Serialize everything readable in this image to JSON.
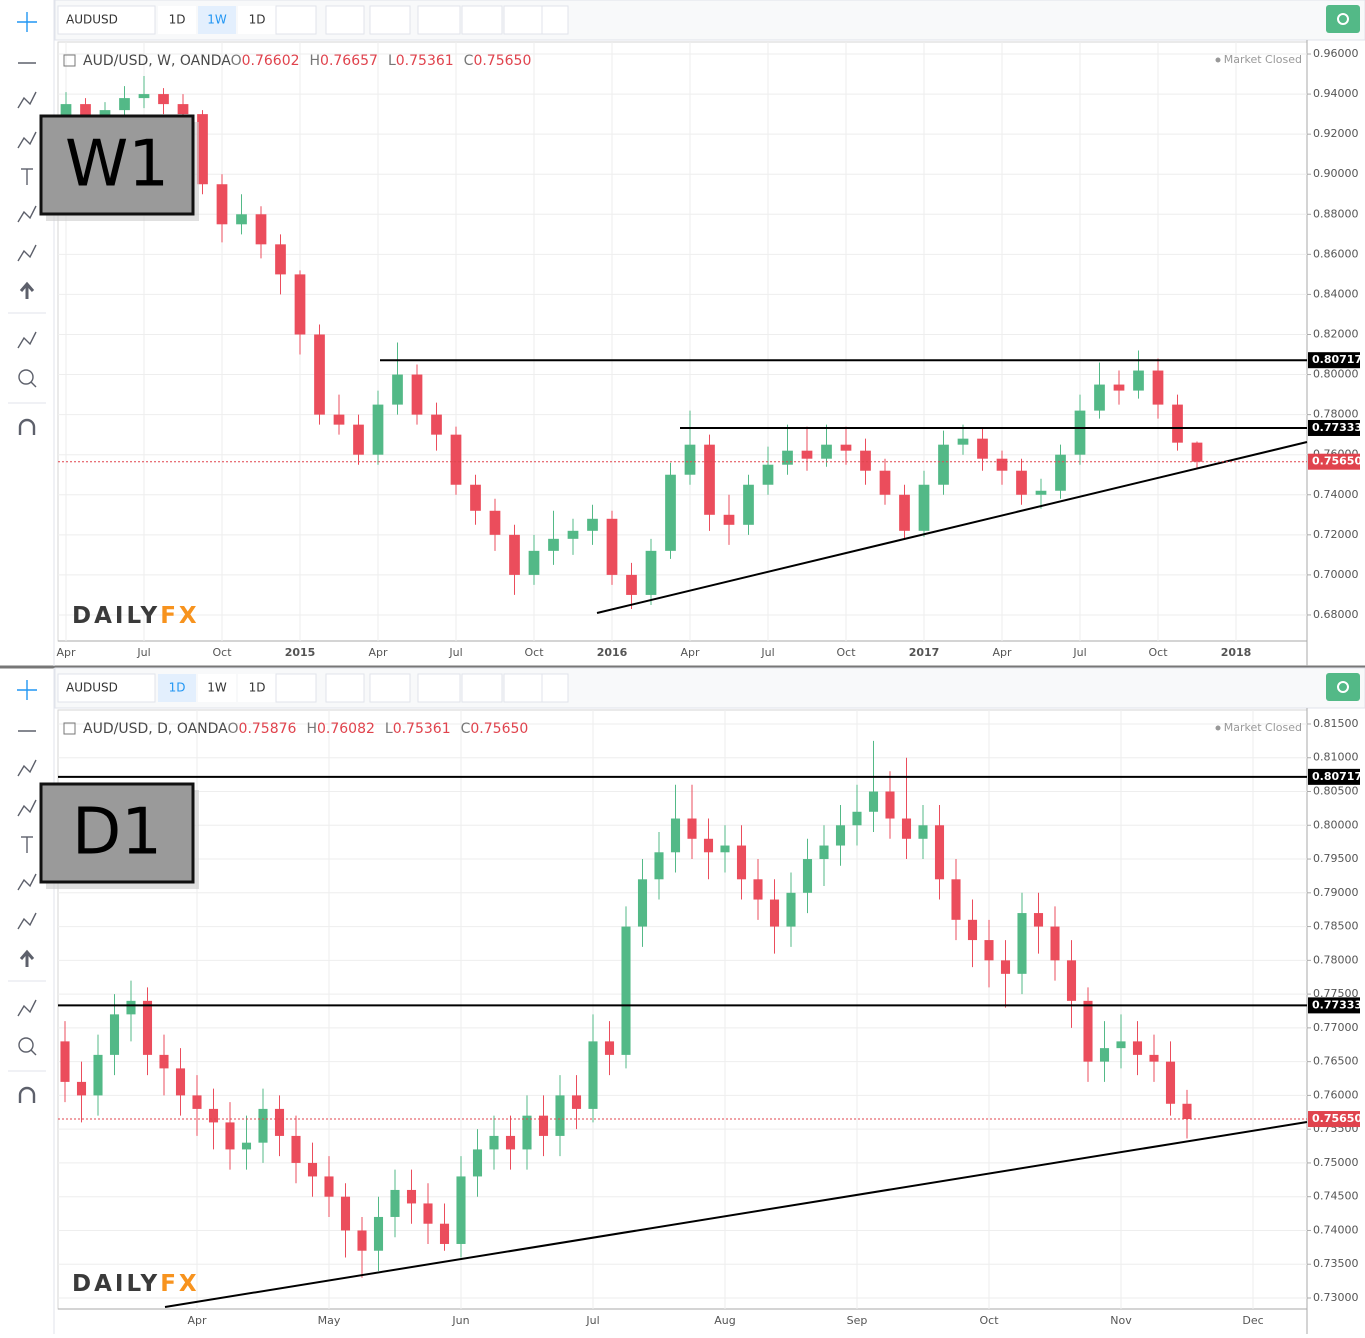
{
  "toolbars": [
    {
      "symbol": "AUDUSD",
      "buttons": [
        "1D",
        "1W",
        "1D"
      ],
      "active": 1
    },
    {
      "symbol": "AUDUSD",
      "buttons": [
        "1D",
        "1W",
        "1D"
      ],
      "active": 0
    }
  ],
  "chart_data": [
    {
      "type": "candlestick",
      "title": "AUD/USD, W, OANDA",
      "badge": "W1",
      "status": "Market Closed",
      "logo": [
        "DAILY",
        "FX"
      ],
      "ohlc_header": [
        {
          "key": "O",
          "text": "0.76602"
        },
        {
          "key": "H",
          "text": "0.76657"
        },
        {
          "key": "L",
          "text": "0.75361"
        },
        {
          "key": "C",
          "text": "0.75650"
        }
      ],
      "up_color": "#53b987",
      "down_color": "#eb4d5c",
      "categories": [
        "Apr",
        null,
        null,
        null,
        "Jul",
        null,
        null,
        null,
        "Oct",
        null,
        null,
        null,
        "2015",
        null,
        null,
        null,
        "Apr",
        null,
        null,
        null,
        "Jul",
        null,
        null,
        null,
        "Oct",
        null,
        null,
        null,
        "2016",
        null,
        null,
        null,
        "Apr",
        null,
        null,
        null,
        "Jul",
        null,
        null,
        null,
        "Oct",
        null,
        null,
        null,
        "2017",
        null,
        null,
        null,
        "Apr",
        null,
        null,
        null,
        "Jul",
        null,
        null,
        null,
        "Oct",
        null,
        null,
        null,
        "2018",
        null,
        null,
        null
      ],
      "open": [
        0.928,
        0.935,
        0.925,
        0.932,
        0.938,
        0.94,
        0.935,
        0.93,
        0.895,
        0.875,
        0.88,
        0.865,
        0.85,
        0.82,
        0.78,
        0.775,
        0.76,
        0.785,
        0.8,
        0.78,
        0.77,
        0.745,
        0.732,
        0.72,
        0.7,
        0.712,
        0.718,
        0.722,
        0.728,
        0.7,
        0.69,
        0.712,
        0.75,
        0.765,
        0.73,
        0.725,
        0.745,
        0.755,
        0.762,
        0.758,
        0.765,
        0.762,
        0.752,
        0.74,
        0.722,
        0.745,
        0.765,
        0.768,
        0.758,
        0.752,
        0.74,
        0.742,
        0.76,
        0.782,
        0.795,
        0.792,
        0.802,
        0.785,
        0.76602,
        null,
        null,
        null,
        null,
        null
      ],
      "high": [
        0.941,
        0.938,
        0.936,
        0.944,
        0.949,
        0.943,
        0.94,
        0.932,
        0.9,
        0.89,
        0.884,
        0.87,
        0.852,
        0.825,
        0.79,
        0.78,
        0.792,
        0.816,
        0.805,
        0.786,
        0.774,
        0.75,
        0.738,
        0.725,
        0.72,
        0.732,
        0.728,
        0.735,
        0.732,
        0.706,
        0.718,
        0.756,
        0.782,
        0.77,
        0.74,
        0.75,
        0.764,
        0.775,
        0.774,
        0.775,
        0.774,
        0.768,
        0.758,
        0.745,
        0.752,
        0.772,
        0.775,
        0.773,
        0.762,
        0.758,
        0.748,
        0.765,
        0.79,
        0.806,
        0.802,
        0.812,
        0.808,
        0.79,
        0.76657,
        null,
        null,
        null,
        null,
        null
      ],
      "low": [
        0.922,
        0.92,
        0.921,
        0.928,
        0.933,
        0.93,
        0.926,
        0.89,
        0.866,
        0.87,
        0.858,
        0.84,
        0.81,
        0.775,
        0.77,
        0.755,
        0.755,
        0.78,
        0.775,
        0.762,
        0.74,
        0.725,
        0.712,
        0.69,
        0.695,
        0.705,
        0.71,
        0.715,
        0.695,
        0.683,
        0.685,
        0.708,
        0.745,
        0.722,
        0.715,
        0.72,
        0.74,
        0.75,
        0.752,
        0.754,
        0.755,
        0.745,
        0.735,
        0.718,
        0.719,
        0.74,
        0.76,
        0.752,
        0.745,
        0.735,
        0.733,
        0.738,
        0.755,
        0.778,
        0.785,
        0.788,
        0.778,
        0.762,
        0.75361,
        null,
        null,
        null,
        null,
        null
      ],
      "close": [
        0.935,
        0.925,
        0.932,
        0.938,
        0.94,
        0.935,
        0.93,
        0.895,
        0.875,
        0.88,
        0.865,
        0.85,
        0.82,
        0.78,
        0.775,
        0.76,
        0.785,
        0.8,
        0.78,
        0.77,
        0.745,
        0.732,
        0.72,
        0.7,
        0.712,
        0.718,
        0.722,
        0.728,
        0.7,
        0.69,
        0.712,
        0.75,
        0.765,
        0.73,
        0.725,
        0.745,
        0.755,
        0.762,
        0.758,
        0.765,
        0.762,
        0.752,
        0.74,
        0.722,
        0.745,
        0.765,
        0.768,
        0.758,
        0.752,
        0.74,
        0.742,
        0.76,
        0.782,
        0.795,
        0.792,
        0.802,
        0.785,
        0.766,
        0.7565,
        null,
        null,
        null,
        null,
        null
      ],
      "ylim": [
        0.667,
        0.966
      ],
      "yticks": [
        {
          "value": 0.68,
          "label": "0.68000"
        },
        {
          "value": 0.7,
          "label": "0.70000"
        },
        {
          "value": 0.72,
          "label": "0.72000"
        },
        {
          "value": 0.74,
          "label": "0.74000"
        },
        {
          "value": 0.76,
          "label": "0.76000"
        },
        {
          "value": 0.78,
          "label": "0.78000"
        },
        {
          "value": 0.8,
          "label": "0.80000"
        },
        {
          "value": 0.82,
          "label": "0.82000"
        },
        {
          "value": 0.84,
          "label": "0.84000"
        },
        {
          "value": 0.86,
          "label": "0.86000"
        },
        {
          "value": 0.88,
          "label": "0.88000"
        },
        {
          "value": 0.9,
          "label": "0.90000"
        },
        {
          "value": 0.92,
          "label": "0.92000"
        },
        {
          "value": 0.94,
          "label": "0.94000"
        },
        {
          "value": 0.96,
          "label": "0.96000"
        }
      ],
      "levels": [
        {
          "value": 0.80717,
          "label": "0.80717",
          "color": "#000000"
        },
        {
          "value": 0.77333,
          "label": "0.77333",
          "color": "#000000"
        },
        {
          "value": 0.7565,
          "label": "0.75650",
          "color": "#e0434d",
          "dashed": true
        }
      ],
      "grid": true
    },
    {
      "type": "candlestick",
      "title": "AUD/USD, D, OANDA",
      "badge": "D1",
      "status": "Market Closed",
      "logo": [
        "DAILY",
        "FX"
      ],
      "ohlc_header": [
        {
          "key": "O",
          "text": "0.75876"
        },
        {
          "key": "H",
          "text": "0.76082"
        },
        {
          "key": "L",
          "text": "0.75361"
        },
        {
          "key": "C",
          "text": "0.75650"
        }
      ],
      "up_color": "#53b987",
      "down_color": "#eb4d5c",
      "categories": [
        null,
        null,
        null,
        null,
        null,
        null,
        null,
        null,
        "Apr",
        null,
        null,
        null,
        null,
        null,
        null,
        null,
        "May",
        null,
        null,
        null,
        null,
        null,
        null,
        null,
        "Jun",
        null,
        null,
        null,
        null,
        null,
        null,
        null,
        "Jul",
        null,
        null,
        null,
        null,
        null,
        null,
        null,
        "Aug",
        null,
        null,
        null,
        null,
        null,
        null,
        null,
        "Sep",
        null,
        null,
        null,
        null,
        null,
        null,
        null,
        "Oct",
        null,
        null,
        null,
        null,
        null,
        null,
        null,
        "Nov",
        null,
        null,
        null,
        null,
        null,
        null,
        null,
        "Dec",
        null,
        null,
        null
      ],
      "open": [
        0.768,
        0.762,
        0.76,
        0.766,
        0.772,
        0.774,
        0.766,
        0.764,
        0.76,
        0.758,
        0.756,
        0.752,
        0.753,
        0.758,
        0.754,
        0.75,
        0.748,
        0.745,
        0.74,
        0.737,
        0.742,
        0.746,
        0.744,
        0.741,
        0.738,
        0.748,
        0.752,
        0.754,
        0.752,
        0.757,
        0.754,
        0.76,
        0.758,
        0.768,
        0.766,
        0.785,
        0.792,
        0.796,
        0.801,
        0.798,
        0.796,
        0.797,
        0.792,
        0.789,
        0.785,
        0.79,
        0.795,
        0.797,
        0.8,
        0.802,
        0.805,
        0.801,
        0.798,
        0.8,
        0.792,
        0.786,
        0.783,
        0.78,
        0.778,
        0.787,
        0.785,
        0.78,
        0.774,
        0.765,
        0.767,
        0.768,
        0.766,
        0.765,
        0.75876,
        null,
        null,
        null,
        null,
        null,
        null,
        null
      ],
      "high": [
        0.771,
        0.765,
        0.769,
        0.775,
        0.777,
        0.776,
        0.769,
        0.767,
        0.763,
        0.761,
        0.759,
        0.757,
        0.761,
        0.76,
        0.757,
        0.753,
        0.751,
        0.747,
        0.742,
        0.745,
        0.749,
        0.749,
        0.747,
        0.744,
        0.751,
        0.755,
        0.757,
        0.757,
        0.76,
        0.76,
        0.763,
        0.763,
        0.772,
        0.771,
        0.788,
        0.795,
        0.799,
        0.806,
        0.806,
        0.801,
        0.8,
        0.8,
        0.795,
        0.792,
        0.793,
        0.798,
        0.8,
        0.803,
        0.806,
        0.8125,
        0.808,
        0.81,
        0.803,
        0.803,
        0.795,
        0.789,
        0.786,
        0.783,
        0.79,
        0.79,
        0.788,
        0.783,
        0.776,
        0.771,
        0.772,
        0.771,
        0.769,
        0.768,
        0.76082,
        null,
        null,
        null,
        null,
        null,
        null,
        null
      ],
      "low": [
        0.759,
        0.756,
        0.757,
        0.763,
        0.768,
        0.763,
        0.76,
        0.757,
        0.754,
        0.752,
        0.749,
        0.749,
        0.75,
        0.751,
        0.747,
        0.745,
        0.742,
        0.736,
        0.733,
        0.734,
        0.739,
        0.741,
        0.738,
        0.737,
        0.736,
        0.745,
        0.749,
        0.749,
        0.749,
        0.751,
        0.751,
        0.755,
        0.756,
        0.763,
        0.764,
        0.782,
        0.789,
        0.793,
        0.795,
        0.792,
        0.793,
        0.789,
        0.786,
        0.781,
        0.782,
        0.787,
        0.791,
        0.794,
        0.797,
        0.799,
        0.798,
        0.795,
        0.795,
        0.789,
        0.783,
        0.779,
        0.776,
        0.773,
        0.775,
        0.781,
        0.777,
        0.77,
        0.762,
        0.762,
        0.764,
        0.763,
        0.762,
        0.757,
        0.75361,
        null,
        null,
        null,
        null,
        null,
        null,
        null
      ],
      "close": [
        0.762,
        0.76,
        0.766,
        0.772,
        0.774,
        0.766,
        0.764,
        0.76,
        0.758,
        0.756,
        0.752,
        0.753,
        0.758,
        0.754,
        0.75,
        0.748,
        0.745,
        0.74,
        0.737,
        0.742,
        0.746,
        0.744,
        0.741,
        0.738,
        0.748,
        0.752,
        0.754,
        0.752,
        0.757,
        0.754,
        0.76,
        0.758,
        0.768,
        0.766,
        0.785,
        0.792,
        0.796,
        0.801,
        0.798,
        0.796,
        0.797,
        0.792,
        0.789,
        0.785,
        0.79,
        0.795,
        0.797,
        0.8,
        0.802,
        0.805,
        0.801,
        0.798,
        0.8,
        0.792,
        0.786,
        0.783,
        0.78,
        0.778,
        0.787,
        0.785,
        0.78,
        0.774,
        0.765,
        0.767,
        0.768,
        0.766,
        0.765,
        0.75876,
        0.7565,
        null,
        null,
        null,
        null,
        null,
        null,
        null
      ],
      "ylim": [
        0.72837,
        0.81707
      ],
      "yticks": [
        {
          "value": 0.73,
          "label": "0.73000"
        },
        {
          "value": 0.735,
          "label": "0.73500"
        },
        {
          "value": 0.74,
          "label": "0.74000"
        },
        {
          "value": 0.745,
          "label": "0.74500"
        },
        {
          "value": 0.75,
          "label": "0.75000"
        },
        {
          "value": 0.755,
          "label": "0.75500"
        },
        {
          "value": 0.76,
          "label": "0.76000"
        },
        {
          "value": 0.765,
          "label": "0.76500"
        },
        {
          "value": 0.77,
          "label": "0.77000"
        },
        {
          "value": 0.775,
          "label": "0.77500"
        },
        {
          "value": 0.78,
          "label": "0.78000"
        },
        {
          "value": 0.785,
          "label": "0.78500"
        },
        {
          "value": 0.79,
          "label": "0.79000"
        },
        {
          "value": 0.795,
          "label": "0.79500"
        },
        {
          "value": 0.8,
          "label": "0.80000"
        },
        {
          "value": 0.805,
          "label": "0.80500"
        },
        {
          "value": 0.81,
          "label": "0.81000"
        },
        {
          "value": 0.815,
          "label": "0.81500"
        }
      ],
      "levels": [
        {
          "value": 0.80717,
          "label": "0.80717",
          "color": "#000000"
        },
        {
          "value": 0.77333,
          "label": "0.77333",
          "color": "#000000"
        },
        {
          "value": 0.7565,
          "label": "0.75650",
          "color": "#e0434d",
          "dashed": true
        }
      ],
      "grid": true
    }
  ]
}
